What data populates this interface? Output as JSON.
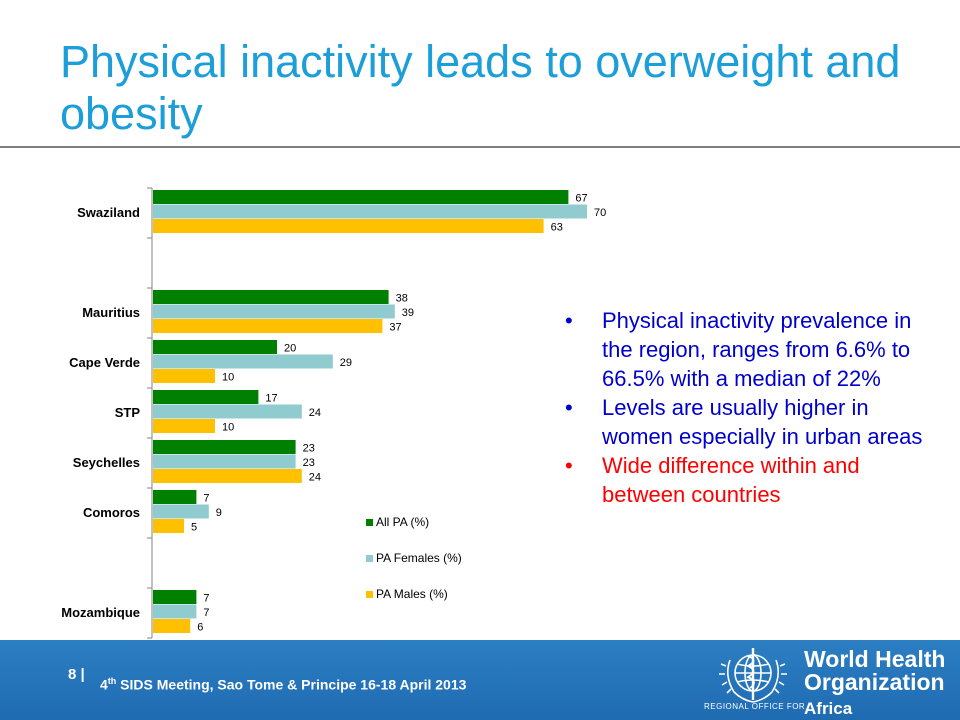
{
  "slide": {
    "title": "Physical inactivity leads to overweight and obesity"
  },
  "chart_data": {
    "type": "bar",
    "orientation": "horizontal",
    "categories": [
      "Swaziland",
      "",
      "Mauritius",
      "Cape Verde",
      "STP",
      "Seychelles",
      "Comoros",
      "",
      "Mozambique"
    ],
    "series": [
      {
        "name": "All PA (%)",
        "color": "#008000",
        "values": [
          67,
          null,
          38,
          20,
          17,
          23,
          7,
          null,
          7
        ]
      },
      {
        "name": "PA Females (%)",
        "color": "#8fcbcf",
        "values": [
          70,
          null,
          39,
          29,
          24,
          23,
          9,
          null,
          7
        ]
      },
      {
        "name": "PA Males (%)",
        "color": "#ffc000",
        "values": [
          63,
          null,
          37,
          10,
          10,
          24,
          5,
          null,
          6
        ]
      }
    ],
    "xlim": [
      0,
      76
    ],
    "grid": false,
    "legend_position": "lower-right",
    "data_labels": true
  },
  "bullets": [
    {
      "text": "Physical inactivity prevalence in the region, ranges from 6.6% to 66.5% with a median of 22%",
      "color": "#0000cc"
    },
    {
      "text": "Levels are usually higher in women especially in urban areas",
      "color": "#0000cc"
    },
    {
      "text": "Wide difference within and between countries",
      "color": "#ff0000"
    }
  ],
  "footer": {
    "page_number": "8 |",
    "meeting_prefix": "4",
    "meeting_sup": "th",
    "meeting_rest": " SIDS Meeting, Sao Tome & Principe  16-18 April 2013",
    "org_line1": "World Health",
    "org_line2": "Organization",
    "region_label": "REGIONAL OFFICE FOR",
    "region_name": "Africa",
    "emblem_icon": "who-emblem-icon"
  }
}
